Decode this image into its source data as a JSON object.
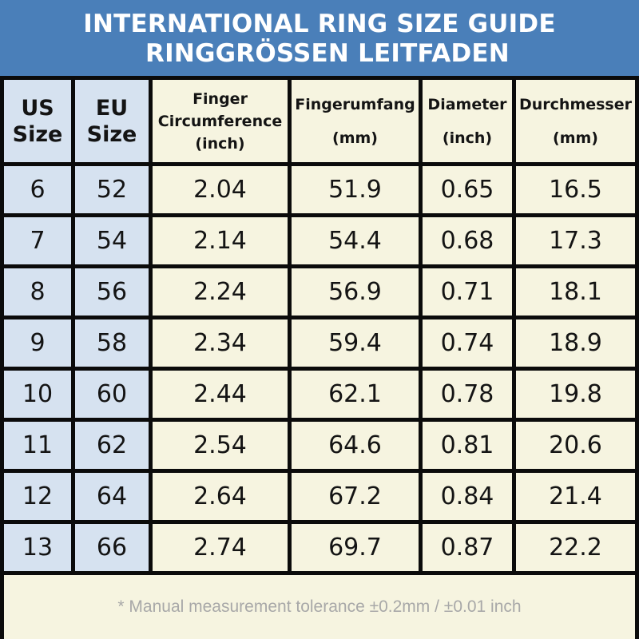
{
  "title": {
    "line1": "INTERNATIONAL RING SIZE GUIDE",
    "line2": "RINGGRÖSSEN LEITFADEN"
  },
  "colors": {
    "banner": "#4a7fb9",
    "size_columns": "#d6e2f0",
    "data_columns": "#f6f4e0",
    "grid_lines": "#0b0b0b",
    "footnote_text": "#a8a8a8"
  },
  "table": {
    "headers": [
      {
        "line1": "US",
        "line2": "Size"
      },
      {
        "line1": "EU",
        "line2": "Size"
      },
      {
        "line1": "Finger",
        "line2": "Circumference",
        "line3": "(inch)"
      },
      {
        "line1": "Fingerumfang",
        "line2": "(mm)"
      },
      {
        "line1": "Diameter",
        "line2": "(inch)"
      },
      {
        "line1": "Durchmesser",
        "line2": "(mm)"
      }
    ],
    "rows": [
      [
        "6",
        "52",
        "2.04",
        "51.9",
        "0.65",
        "16.5"
      ],
      [
        "7",
        "54",
        "2.14",
        "54.4",
        "0.68",
        "17.3"
      ],
      [
        "8",
        "56",
        "2.24",
        "56.9",
        "0.71",
        "18.1"
      ],
      [
        "9",
        "58",
        "2.34",
        "59.4",
        "0.74",
        "18.9"
      ],
      [
        "10",
        "60",
        "2.44",
        "62.1",
        "0.78",
        "19.8"
      ],
      [
        "11",
        "62",
        "2.54",
        "64.6",
        "0.81",
        "20.6"
      ],
      [
        "12",
        "64",
        "2.64",
        "67.2",
        "0.84",
        "21.4"
      ],
      [
        "13",
        "66",
        "2.74",
        "69.7",
        "0.87",
        "22.2"
      ]
    ]
  },
  "footnote": "* Manual measurement tolerance ±0.2mm / ±0.01 inch"
}
